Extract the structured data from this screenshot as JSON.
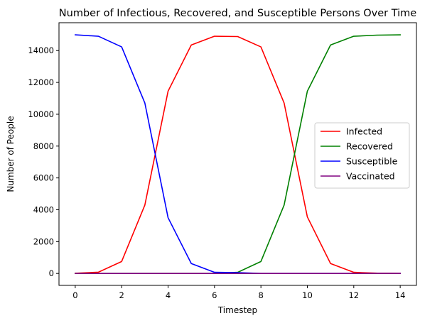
{
  "chart_data": {
    "type": "line",
    "title": "Number of Infectious, Recovered, and Susceptible Persons Over Time",
    "xlabel": "Timestep",
    "ylabel": "Number of People",
    "xlim": [
      -0.7,
      14.7
    ],
    "ylim": [
      -750,
      15750
    ],
    "xticks": [
      0,
      2,
      4,
      6,
      8,
      10,
      12,
      14
    ],
    "yticks": [
      0,
      2000,
      4000,
      6000,
      8000,
      10000,
      12000,
      14000
    ],
    "grid": false,
    "legend_position": "center-right",
    "x": [
      0,
      1,
      2,
      3,
      4,
      5,
      6,
      7,
      8,
      9,
      10,
      11,
      12,
      13,
      14
    ],
    "series": [
      {
        "name": "Infected",
        "color": "#ff0000",
        "values": [
          10,
          80,
          750,
          4300,
          11450,
          14350,
          14900,
          14880,
          14230,
          10700,
          3550,
          620,
          70,
          15,
          5
        ]
      },
      {
        "name": "Recovered",
        "color": "#008000",
        "values": [
          0,
          0,
          0,
          0,
          0,
          0,
          0,
          70,
          750,
          4300,
          11450,
          14350,
          14900,
          14970,
          14990
        ]
      },
      {
        "name": "Susceptible",
        "color": "#0000ff",
        "values": [
          14990,
          14900,
          14230,
          10700,
          3500,
          620,
          70,
          50,
          0,
          0,
          0,
          0,
          0,
          0,
          0
        ]
      },
      {
        "name": "Vaccinated",
        "color": "#800080",
        "values": [
          0,
          0,
          0,
          0,
          0,
          0,
          0,
          0,
          0,
          0,
          0,
          0,
          0,
          0,
          0
        ]
      }
    ]
  }
}
